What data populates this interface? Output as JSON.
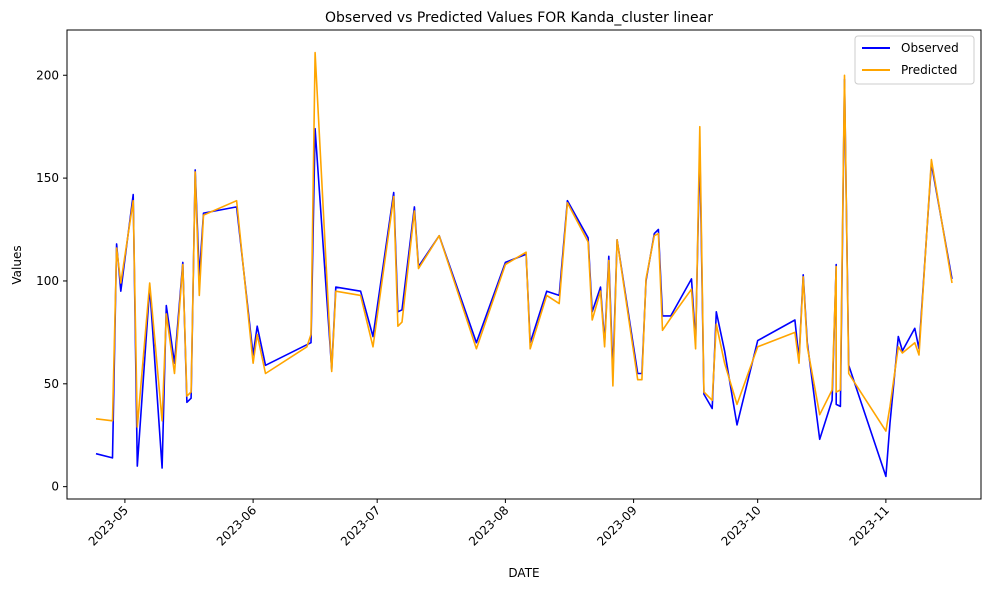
{
  "chart_data": {
    "type": "line",
    "title": "Observed vs Predicted Values FOR Kanda_cluster linear",
    "xlabel": "DATE",
    "ylabel": "Values",
    "x_range": [
      "2023-04-17",
      "2023-11-24"
    ],
    "ylim": [
      -6,
      222
    ],
    "x_ticks": [
      "2023-05",
      "2023-06",
      "2023-07",
      "2023-08",
      "2023-09",
      "2023-10",
      "2023-11"
    ],
    "y_ticks": [
      0,
      50,
      100,
      150,
      200
    ],
    "grid": false,
    "legend_position": "top-right",
    "series": [
      {
        "name": "Observed",
        "color": "#0000ff",
        "points": [
          [
            "2023-04-24",
            16
          ],
          [
            "2023-04-28",
            14
          ],
          [
            "2023-04-29",
            118
          ],
          [
            "2023-04-30",
            95
          ],
          [
            "2023-05-03",
            142
          ],
          [
            "2023-05-04",
            10
          ],
          [
            "2023-05-07",
            97
          ],
          [
            "2023-05-10",
            9
          ],
          [
            "2023-05-11",
            88
          ],
          [
            "2023-05-13",
            60
          ],
          [
            "2023-05-15",
            109
          ],
          [
            "2023-05-16",
            41
          ],
          [
            "2023-05-17",
            43
          ],
          [
            "2023-05-18",
            154
          ],
          [
            "2023-05-19",
            102
          ],
          [
            "2023-05-20",
            133
          ],
          [
            "2023-05-28",
            136
          ],
          [
            "2023-06-01",
            64
          ],
          [
            "2023-06-02",
            78
          ],
          [
            "2023-06-04",
            59
          ],
          [
            "2023-06-14",
            69
          ],
          [
            "2023-06-15",
            70
          ],
          [
            "2023-06-16",
            174
          ],
          [
            "2023-06-20",
            57
          ],
          [
            "2023-06-21",
            97
          ],
          [
            "2023-06-27",
            95
          ],
          [
            "2023-06-30",
            73
          ],
          [
            "2023-07-05",
            143
          ],
          [
            "2023-07-06",
            85
          ],
          [
            "2023-07-07",
            86
          ],
          [
            "2023-07-10",
            136
          ],
          [
            "2023-07-11",
            107
          ],
          [
            "2023-07-16",
            122
          ],
          [
            "2023-07-25",
            70
          ],
          [
            "2023-08-01",
            109
          ],
          [
            "2023-08-06",
            113
          ],
          [
            "2023-08-07",
            70
          ],
          [
            "2023-08-11",
            95
          ],
          [
            "2023-08-14",
            93
          ],
          [
            "2023-08-16",
            139
          ],
          [
            "2023-08-21",
            121
          ],
          [
            "2023-08-22",
            85
          ],
          [
            "2023-08-24",
            97
          ],
          [
            "2023-08-25",
            70
          ],
          [
            "2023-08-26",
            112
          ],
          [
            "2023-08-27",
            55
          ],
          [
            "2023-08-28",
            120
          ],
          [
            "2023-09-02",
            55
          ],
          [
            "2023-09-03",
            55
          ],
          [
            "2023-09-04",
            100
          ],
          [
            "2023-09-06",
            123
          ],
          [
            "2023-09-07",
            125
          ],
          [
            "2023-09-08",
            83
          ],
          [
            "2023-09-10",
            83
          ],
          [
            "2023-09-15",
            101
          ],
          [
            "2023-09-16",
            70
          ],
          [
            "2023-09-17",
            165
          ],
          [
            "2023-09-18",
            45
          ],
          [
            "2023-09-20",
            38
          ],
          [
            "2023-09-21",
            85
          ],
          [
            "2023-09-23",
            66
          ],
          [
            "2023-09-26",
            30
          ],
          [
            "2023-10-01",
            71
          ],
          [
            "2023-10-10",
            81
          ],
          [
            "2023-10-11",
            62
          ],
          [
            "2023-10-12",
            103
          ],
          [
            "2023-10-13",
            70
          ],
          [
            "2023-10-16",
            23
          ],
          [
            "2023-10-19",
            42
          ],
          [
            "2023-10-20",
            108
          ],
          [
            "2023-10-20",
            40
          ],
          [
            "2023-10-21",
            39
          ],
          [
            "2023-10-22",
            198
          ],
          [
            "2023-10-23",
            59
          ],
          [
            "2023-11-01",
            5
          ],
          [
            "2023-11-02",
            31
          ],
          [
            "2023-11-04",
            73
          ],
          [
            "2023-11-05",
            66
          ],
          [
            "2023-11-08",
            77
          ],
          [
            "2023-11-09",
            67
          ],
          [
            "2023-11-12",
            157
          ],
          [
            "2023-11-17",
            101
          ]
        ]
      },
      {
        "name": "Predicted",
        "color": "#ffa500",
        "points": [
          [
            "2023-04-24",
            33
          ],
          [
            "2023-04-28",
            32
          ],
          [
            "2023-04-29",
            116
          ],
          [
            "2023-04-30",
            99
          ],
          [
            "2023-05-03",
            139
          ],
          [
            "2023-05-04",
            29
          ],
          [
            "2023-05-07",
            99
          ],
          [
            "2023-05-10",
            32
          ],
          [
            "2023-05-11",
            84
          ],
          [
            "2023-05-13",
            55
          ],
          [
            "2023-05-15",
            108
          ],
          [
            "2023-05-16",
            44
          ],
          [
            "2023-05-17",
            46
          ],
          [
            "2023-05-18",
            153
          ],
          [
            "2023-05-19",
            93
          ],
          [
            "2023-05-20",
            132
          ],
          [
            "2023-05-28",
            139
          ],
          [
            "2023-06-01",
            60
          ],
          [
            "2023-06-02",
            74
          ],
          [
            "2023-06-04",
            55
          ],
          [
            "2023-06-14",
            68
          ],
          [
            "2023-06-15",
            74
          ],
          [
            "2023-06-16",
            211
          ],
          [
            "2023-06-20",
            56
          ],
          [
            "2023-06-21",
            95
          ],
          [
            "2023-06-27",
            93
          ],
          [
            "2023-06-30",
            68
          ],
          [
            "2023-07-05",
            141
          ],
          [
            "2023-07-06",
            78
          ],
          [
            "2023-07-07",
            80
          ],
          [
            "2023-07-10",
            134
          ],
          [
            "2023-07-11",
            106
          ],
          [
            "2023-07-16",
            122
          ],
          [
            "2023-07-25",
            67
          ],
          [
            "2023-08-01",
            108
          ],
          [
            "2023-08-06",
            114
          ],
          [
            "2023-08-07",
            67
          ],
          [
            "2023-08-11",
            93
          ],
          [
            "2023-08-14",
            89
          ],
          [
            "2023-08-16",
            138
          ],
          [
            "2023-08-21",
            119
          ],
          [
            "2023-08-22",
            81
          ],
          [
            "2023-08-24",
            95
          ],
          [
            "2023-08-25",
            68
          ],
          [
            "2023-08-26",
            110
          ],
          [
            "2023-08-27",
            49
          ],
          [
            "2023-08-28",
            120
          ],
          [
            "2023-09-02",
            52
          ],
          [
            "2023-09-03",
            52
          ],
          [
            "2023-09-04",
            101
          ],
          [
            "2023-09-06",
            122
          ],
          [
            "2023-09-07",
            123
          ],
          [
            "2023-09-08",
            76
          ],
          [
            "2023-09-10",
            82
          ],
          [
            "2023-09-15",
            96
          ],
          [
            "2023-09-16",
            67
          ],
          [
            "2023-09-17",
            175
          ],
          [
            "2023-09-18",
            46
          ],
          [
            "2023-09-20",
            42
          ],
          [
            "2023-09-21",
            79
          ],
          [
            "2023-09-23",
            60
          ],
          [
            "2023-09-26",
            40
          ],
          [
            "2023-10-01",
            68
          ],
          [
            "2023-10-10",
            75
          ],
          [
            "2023-10-11",
            60
          ],
          [
            "2023-10-12",
            102
          ],
          [
            "2023-10-13",
            68
          ],
          [
            "2023-10-16",
            35
          ],
          [
            "2023-10-19",
            47
          ],
          [
            "2023-10-20",
            107
          ],
          [
            "2023-10-20",
            46
          ],
          [
            "2023-10-21",
            47
          ],
          [
            "2023-10-22",
            200
          ],
          [
            "2023-10-23",
            55
          ],
          [
            "2023-11-01",
            27
          ],
          [
            "2023-11-02",
            39
          ],
          [
            "2023-11-04",
            68
          ],
          [
            "2023-11-05",
            65
          ],
          [
            "2023-11-08",
            70
          ],
          [
            "2023-11-09",
            64
          ],
          [
            "2023-11-12",
            159
          ],
          [
            "2023-11-17",
            99
          ]
        ]
      }
    ]
  }
}
